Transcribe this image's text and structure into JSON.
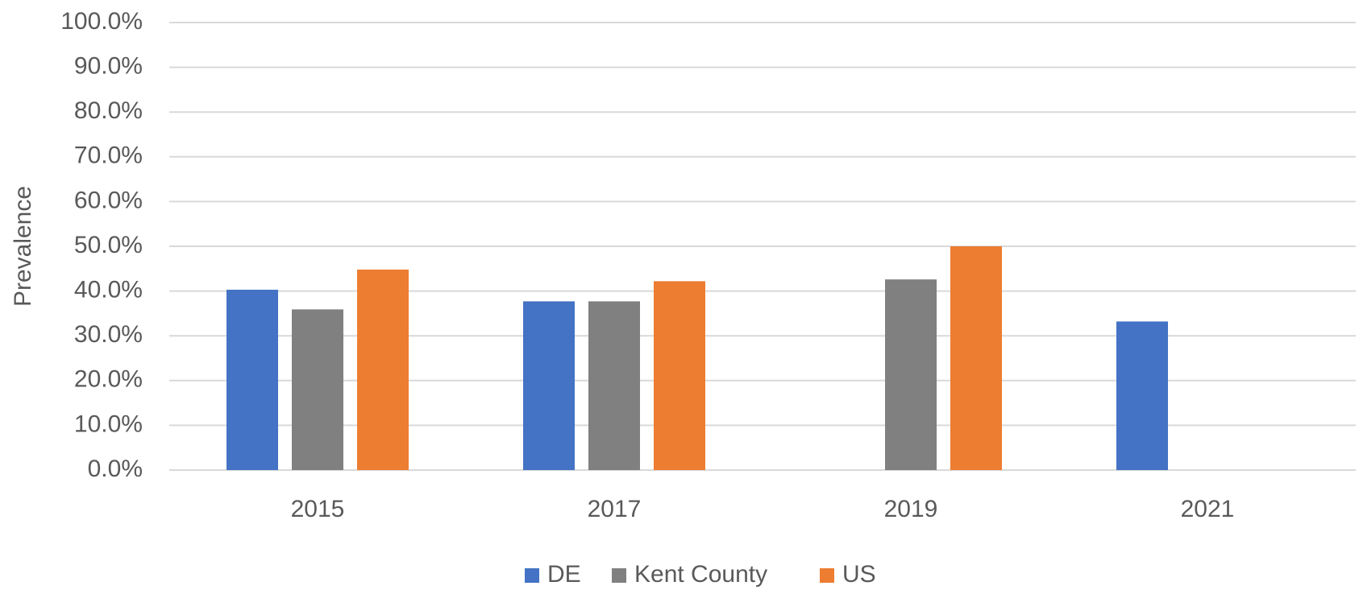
{
  "chart_data": {
    "type": "bar",
    "y_label": "Prevalence",
    "categories": [
      "2015",
      "2017",
      "2019",
      "2021"
    ],
    "series": [
      {
        "name": "DE",
        "color": "#4472c4",
        "values": [
          40.3,
          37.7,
          null,
          33.2
        ]
      },
      {
        "name": "Kent County",
        "color": "#808080",
        "values": [
          35.9,
          37.7,
          42.6,
          null
        ]
      },
      {
        "name": "US",
        "color": "#ed7d31",
        "values": [
          44.8,
          42.2,
          50.0,
          null
        ]
      }
    ],
    "ylim": [
      0,
      100
    ],
    "yticks": [
      {
        "value": 0,
        "label": "0.0%"
      },
      {
        "value": 10,
        "label": "10.0%"
      },
      {
        "value": 20,
        "label": "20.0%"
      },
      {
        "value": 30,
        "label": "30.0%"
      },
      {
        "value": 40,
        "label": "40.0%"
      },
      {
        "value": 50,
        "label": "50.0%"
      },
      {
        "value": 60,
        "label": "60.0%"
      },
      {
        "value": 70,
        "label": "70.0%"
      },
      {
        "value": 80,
        "label": "80.0%"
      },
      {
        "value": 90,
        "label": "90.0%"
      },
      {
        "value": 100,
        "label": "100.0%"
      }
    ],
    "grid": true,
    "legend": "bottom"
  }
}
